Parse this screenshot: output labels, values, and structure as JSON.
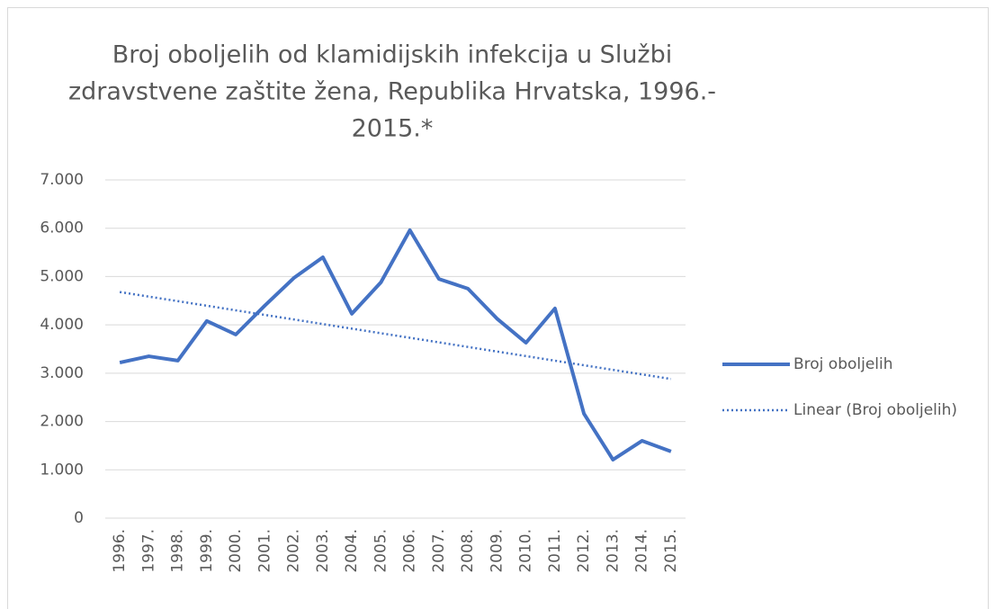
{
  "chart_data": {
    "type": "line",
    "title": [
      "Broj oboljelih od klamidijskih infekcija u Službi",
      "zdravstvene zaštite žena, Republika Hrvatska, 1996.-",
      "2015.*"
    ],
    "categories": [
      "1996.",
      "1997.",
      "1998.",
      "1999.",
      "2000.",
      "2001.",
      "2002.",
      "2003.",
      "2004.",
      "2005.",
      "2006.",
      "2007.",
      "2008.",
      "2009.",
      "2010.",
      "2011.",
      "2012.",
      "2013.",
      "2014.",
      "2015."
    ],
    "series": [
      {
        "name": "Broj oboljelih",
        "color": "#4472c4",
        "style": "solid",
        "values": [
          3220,
          3350,
          3260,
          4080,
          3800,
          4400,
          4970,
          5400,
          4230,
          4880,
          5960,
          4950,
          4750,
          4130,
          3630,
          4340,
          2160,
          1210,
          1600,
          1380
        ]
      },
      {
        "name": "Linear (Broj oboljelih)",
        "color": "#4472c4",
        "style": "dotted",
        "values": [
          4680,
          4585,
          4491,
          4396,
          4301,
          4206,
          4112,
          4017,
          3922,
          3827,
          3733,
          3638,
          3543,
          3448,
          3354,
          3259,
          3164,
          3069,
          2975,
          2880
        ]
      }
    ],
    "ylim": [
      0,
      7000
    ],
    "yticks": [
      0,
      {
        "value": 1000,
        "label": "1.000"
      },
      {
        "value": 2000,
        "label": "2.000"
      },
      {
        "value": 3000,
        "label": "3.000"
      },
      {
        "value": 4000,
        "label": "4.000"
      },
      {
        "value": 5000,
        "label": "5.000"
      },
      {
        "value": 6000,
        "label": "6.000"
      },
      {
        "value": 7000,
        "label": "7.000"
      }
    ],
    "grid": true,
    "legend": "right"
  }
}
